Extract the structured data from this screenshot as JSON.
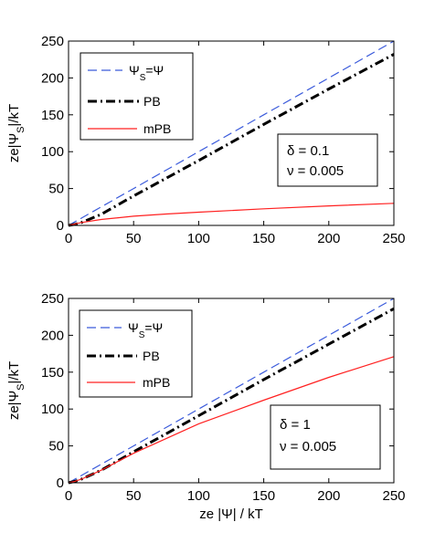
{
  "chart_data": [
    {
      "type": "line",
      "xlabel": "",
      "ylabel": "ze|Ψ_S|/kT",
      "ylabel_main": "ze|Ψ",
      "ylabel_sub": "S",
      "ylabel_tail": "|/kT",
      "xlim": [
        0,
        250
      ],
      "ylim": [
        0,
        250
      ],
      "xticks": [
        "0",
        "50",
        "100",
        "150",
        "200",
        "250"
      ],
      "yticks": [
        "0",
        "50",
        "100",
        "150",
        "200",
        "250"
      ],
      "grid": false,
      "legend_position": "top-left",
      "series": [
        {
          "name": "Ψ_S=Ψ",
          "legend_main": "Ψ",
          "legend_sub": "S",
          "legend_tail": "=Ψ",
          "style": "dashed",
          "color": "#3b5bdb",
          "x": [
            0,
            50,
            100,
            150,
            200,
            250
          ],
          "y": [
            0,
            50,
            100,
            150,
            200,
            250
          ]
        },
        {
          "name": "PB",
          "style": "dashdot",
          "color": "#000000",
          "x": [
            0,
            5,
            10,
            25,
            50,
            100,
            150,
            200,
            250
          ],
          "y": [
            0,
            1.5,
            4,
            15,
            40,
            88,
            137,
            185,
            232
          ]
        },
        {
          "name": "mPB",
          "style": "solid",
          "color": "#ff2020",
          "x": [
            0,
            5,
            10,
            25,
            50,
            75,
            100,
            150,
            200,
            250
          ],
          "y": [
            0,
            2,
            4,
            8,
            12.5,
            15.5,
            18,
            22.5,
            26.5,
            30
          ]
        }
      ],
      "annotation": {
        "line1": "δ = 0.1",
        "line2": "ν = 0.005"
      }
    },
    {
      "type": "line",
      "xlabel": "ze |Ψ| / kT",
      "ylabel": "ze|Ψ_S|/kT",
      "ylabel_main": "ze|Ψ",
      "ylabel_sub": "S",
      "ylabel_tail": "|/kT",
      "xlim": [
        0,
        250
      ],
      "ylim": [
        0,
        250
      ],
      "xticks": [
        "0",
        "50",
        "100",
        "150",
        "200",
        "250"
      ],
      "yticks": [
        "0",
        "50",
        "100",
        "150",
        "200",
        "250"
      ],
      "grid": false,
      "legend_position": "top-left",
      "series": [
        {
          "name": "Ψ_S=Ψ",
          "legend_main": "Ψ",
          "legend_sub": "S",
          "legend_tail": "=Ψ",
          "style": "dashed",
          "color": "#3b5bdb",
          "x": [
            0,
            50,
            100,
            150,
            200,
            250
          ],
          "y": [
            0,
            50,
            100,
            150,
            200,
            250
          ]
        },
        {
          "name": "PB",
          "style": "dashdot",
          "color": "#000000",
          "x": [
            0,
            5,
            10,
            25,
            50,
            100,
            150,
            200,
            250
          ],
          "y": [
            0,
            2,
            5,
            17,
            42,
            91,
            140,
            188,
            236
          ]
        },
        {
          "name": "mPB",
          "style": "solid",
          "color": "#ff2020",
          "x": [
            0,
            5,
            10,
            25,
            50,
            100,
            150,
            200,
            250
          ],
          "y": [
            0,
            2,
            5,
            17,
            40,
            80,
            112,
            143,
            171
          ]
        }
      ],
      "annotation": {
        "line1": "δ = 1",
        "line2": "ν = 0.005"
      }
    }
  ]
}
